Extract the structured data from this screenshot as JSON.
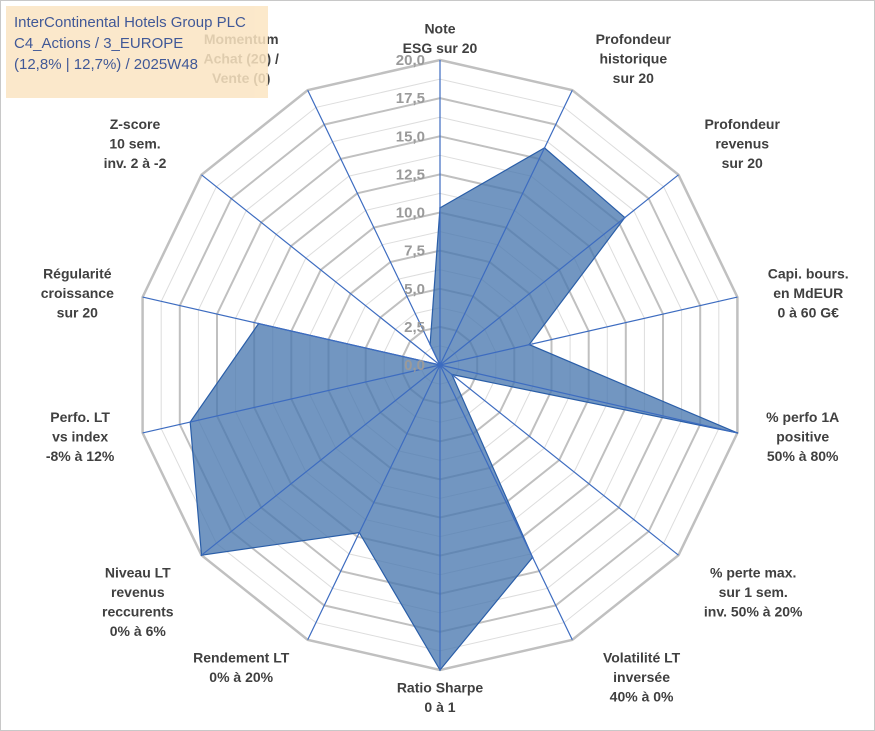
{
  "header": {
    "line1": "InterContinental Hotels Group PLC",
    "line2": "C4_Actions / 3_EUROPE",
    "line3": "(12,8% | 12,7%) / 2025W48"
  },
  "colors": {
    "fill": "#4a78b0",
    "stroke": "#2a5ea8",
    "grid_major": "#c0c0c0",
    "grid_minor": "#dddddd",
    "spoke": "#3d6cc0"
  },
  "chart_data": {
    "type": "radar",
    "rmin": 0,
    "rmax": 20,
    "ticks": [
      "0,0",
      "2,5",
      "5,0",
      "7,5",
      "10,0",
      "12,5",
      "15,0",
      "17,5",
      "20,0"
    ],
    "tick_values": [
      0,
      2.5,
      5,
      7.5,
      10,
      12.5,
      15,
      17.5,
      20
    ],
    "axes": [
      {
        "label": [
          "Note",
          "ESG sur 20"
        ],
        "value": 10.3
      },
      {
        "label": [
          "Profondeur",
          "historique",
          "sur 20"
        ],
        "value": 15.8
      },
      {
        "label": [
          "Profondeur",
          "revenus",
          "sur 20"
        ],
        "value": 15.5
      },
      {
        "label": [
          "Capi. bours.",
          "en MdEUR",
          "0 à 60 G€"
        ],
        "value": 6.0
      },
      {
        "label": [
          "% perfo 1A",
          "positive",
          "50% à 80%"
        ],
        "value": 20.0
      },
      {
        "label": [
          "% perte max.",
          "sur 1 sem.",
          "inv. 50% à 20%"
        ],
        "value": 1.0
      },
      {
        "label": [
          "Volatilité LT",
          "inversée",
          "40% à 0%"
        ],
        "value": 14.0
      },
      {
        "label": [
          "Ratio Sharpe",
          "0 à 1"
        ],
        "value": 20.0
      },
      {
        "label": [
          "Rendement LT",
          "0% à 20%"
        ],
        "value": 12.2
      },
      {
        "label": [
          "Niveau LT",
          "revenus",
          "reccurents",
          "0% à 6%"
        ],
        "value": 20.0
      },
      {
        "label": [
          "Perfo. LT",
          "vs index",
          "-8% à 12%"
        ],
        "value": 16.8
      },
      {
        "label": [
          "Régularité",
          "croissance",
          "sur 20"
        ],
        "value": 12.2
      },
      {
        "label": [
          "Z-score",
          "10 sem.",
          "inv. 2 à -2"
        ],
        "value": 0.0
      },
      {
        "label": [
          "Momentum",
          "Achat (20) /",
          "Vente (0)"
        ],
        "value": 1.5
      }
    ]
  }
}
